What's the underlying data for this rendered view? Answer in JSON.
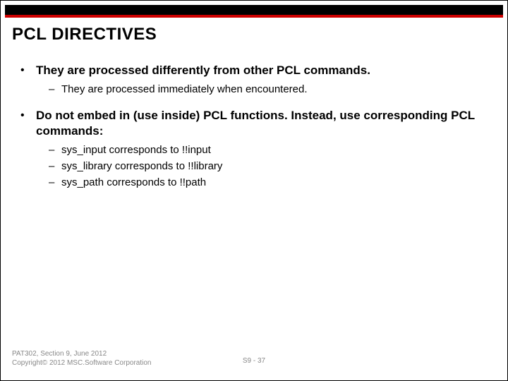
{
  "colors": {
    "accent": "#cc0000",
    "topbar": "#000000",
    "text": "#000000",
    "footer": "#888888",
    "background": "#ffffff"
  },
  "title": "PCL DIRECTIVES",
  "bullets": [
    {
      "text": "They are processed differently from other PCL commands.",
      "sub": [
        "They are processed immediately when encountered."
      ]
    },
    {
      "text": "Do not embed in (use inside) PCL functions. Instead, use corresponding PCL commands:",
      "sub": [
        "sys_input corresponds to !!input",
        "sys_library corresponds to !!library",
        "sys_path corresponds to !!path"
      ]
    }
  ],
  "footer": {
    "line1": "PAT302, Section 9, June 2012",
    "line2": "Copyright© 2012 MSC.Software Corporation",
    "page": "S9 - 37"
  }
}
